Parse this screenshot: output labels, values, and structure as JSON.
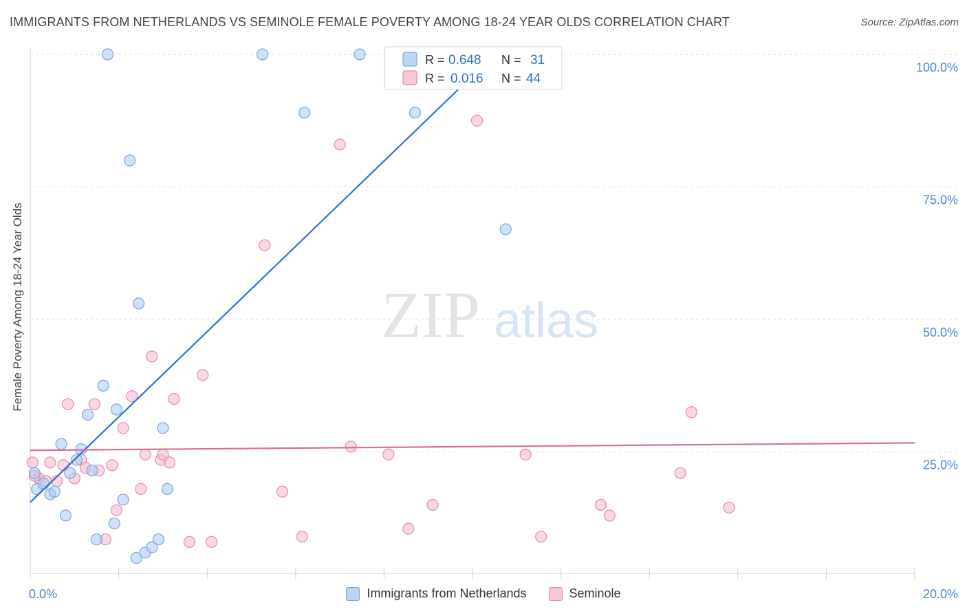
{
  "header": {
    "title": "IMMIGRANTS FROM NETHERLANDS VS SEMINOLE FEMALE POVERTY AMONG 18-24 YEAR OLDS CORRELATION CHART",
    "source": "Source: ZipAtlas.com"
  },
  "watermark": {
    "zip": "ZIP",
    "atlas": "atlas"
  },
  "colors": {
    "blue_fill": "#a9c8f2",
    "blue_stroke": "#7aa6dd",
    "blue_line": "#2a72d6",
    "pink_fill": "#f6b8cc",
    "pink_stroke": "#e88aa8",
    "pink_line": "#e06b98",
    "axis_label_blue": "#4a86d8",
    "grid": "#dddddd"
  },
  "legend_box": {
    "rows": [
      {
        "r_label": "R =",
        "r_value": "0.648",
        "n_label": "N =",
        "n_value": "31",
        "series": "blue"
      },
      {
        "r_label": "R =",
        "r_value": "0.016",
        "n_label": "N =",
        "n_value": "44",
        "series": "pink"
      }
    ]
  },
  "chart_data": {
    "type": "scatter",
    "title": "IMMIGRANTS FROM NETHERLANDS VS SEMINOLE FEMALE POVERTY AMONG 18-24 YEAR OLDS CORRELATION CHART",
    "xlabel": "",
    "ylabel": "Female Poverty Among 18-24 Year Olds",
    "xlim": [
      0,
      20
    ],
    "ylim": [
      0,
      105
    ],
    "x_tick_labels": [
      "0.0%",
      "20.0%"
    ],
    "y_ticks": [
      25,
      50,
      75,
      100
    ],
    "y_tick_labels": [
      "25.0%",
      "50.0%",
      "75.0%",
      "100.0%"
    ],
    "grid": true,
    "legend_position": "top-center",
    "series": [
      {
        "name": "Immigrants from Netherlands",
        "color": "blue",
        "R": 0.648,
        "N": 31,
        "trend": {
          "x": [
            0,
            10.5
          ],
          "y": [
            15.5,
            100
          ]
        },
        "points": [
          [
            0.1,
            21
          ],
          [
            0.15,
            18
          ],
          [
            0.3,
            19
          ],
          [
            0.45,
            17
          ],
          [
            0.55,
            17.5
          ],
          [
            0.7,
            26.5
          ],
          [
            0.8,
            13
          ],
          [
            0.9,
            21
          ],
          [
            1.05,
            23.5
          ],
          [
            1.15,
            25.5
          ],
          [
            1.3,
            32
          ],
          [
            1.4,
            21.5
          ],
          [
            1.5,
            8.5
          ],
          [
            1.65,
            37.5
          ],
          [
            1.9,
            11.5
          ],
          [
            1.95,
            33
          ],
          [
            2.1,
            16
          ],
          [
            2.25,
            80
          ],
          [
            2.4,
            5
          ],
          [
            2.45,
            53
          ],
          [
            2.6,
            6
          ],
          [
            2.75,
            7
          ],
          [
            2.9,
            8.5
          ],
          [
            3.0,
            29.5
          ],
          [
            3.1,
            18
          ],
          [
            1.75,
            100
          ],
          [
            5.25,
            100
          ],
          [
            7.45,
            100
          ],
          [
            6.2,
            89
          ],
          [
            8.7,
            89
          ],
          [
            10.75,
            67
          ]
        ]
      },
      {
        "name": "Seminole",
        "color": "pink",
        "R": 0.016,
        "N": 44,
        "trend": {
          "x": [
            0,
            20
          ],
          "y": [
            25.3,
            26.7
          ]
        },
        "points": [
          [
            0.05,
            23
          ],
          [
            0.2,
            20
          ],
          [
            0.35,
            19.5
          ],
          [
            0.45,
            23
          ],
          [
            0.6,
            19.5
          ],
          [
            0.75,
            22.5
          ],
          [
            0.85,
            34
          ],
          [
            1.0,
            20
          ],
          [
            1.15,
            23.5
          ],
          [
            1.25,
            22
          ],
          [
            1.45,
            34
          ],
          [
            1.55,
            21.5
          ],
          [
            1.7,
            8.5
          ],
          [
            1.85,
            22.5
          ],
          [
            1.95,
            14
          ],
          [
            2.1,
            29.5
          ],
          [
            2.3,
            35.5
          ],
          [
            2.5,
            18
          ],
          [
            2.6,
            24.5
          ],
          [
            2.75,
            43
          ],
          [
            2.95,
            23.5
          ],
          [
            3.0,
            24.5
          ],
          [
            3.15,
            23
          ],
          [
            3.25,
            35
          ],
          [
            3.6,
            8
          ],
          [
            3.9,
            39.5
          ],
          [
            4.1,
            8
          ],
          [
            5.3,
            64
          ],
          [
            5.7,
            17.5
          ],
          [
            6.15,
            9
          ],
          [
            7.0,
            83
          ],
          [
            7.25,
            26
          ],
          [
            8.1,
            24.5
          ],
          [
            8.55,
            10.5
          ],
          [
            9.1,
            15
          ],
          [
            10.1,
            87.5
          ],
          [
            11.2,
            24.5
          ],
          [
            11.55,
            9
          ],
          [
            12.9,
            15
          ],
          [
            13.1,
            13
          ],
          [
            14.7,
            21
          ],
          [
            14.95,
            32.5
          ],
          [
            15.8,
            14.5
          ],
          [
            0.1,
            20.5
          ]
        ]
      }
    ]
  },
  "legend_bottom": [
    {
      "label": "Immigrants from Netherlands",
      "color": "blue"
    },
    {
      "label": "Seminole",
      "color": "pink"
    }
  ]
}
